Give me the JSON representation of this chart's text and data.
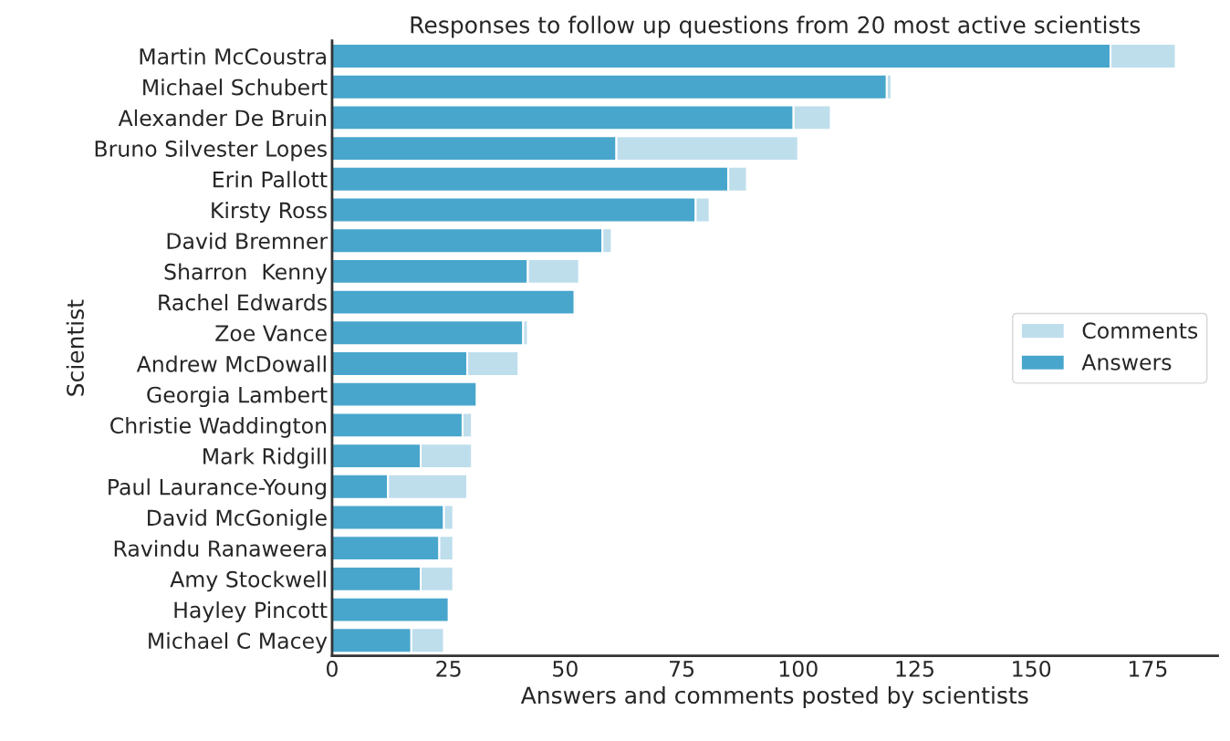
{
  "chart_data": {
    "type": "bar",
    "orientation": "horizontal",
    "stacked": true,
    "title": "Responses to follow up questions from 20 most active scientists",
    "xlabel": "Answers and comments posted by scientists",
    "ylabel": "Scientist",
    "categories": [
      "Martin McCoustra",
      "Michael Schubert",
      "Alexander De Bruin",
      "Bruno Silvester Lopes",
      "Erin Pallott",
      "Kirsty Ross",
      "David Bremner",
      "Sharron  Kenny",
      "Rachel Edwards",
      "Zoe Vance",
      "Andrew McDowall",
      "Georgia Lambert",
      "Christie Waddington",
      "Mark Ridgill",
      "Paul Laurance-Young",
      "David McGonigle",
      "Ravindu Ranaweera",
      "Amy Stockwell",
      "Hayley Pincott",
      "Michael C Macey"
    ],
    "series": [
      {
        "name": "Answers",
        "color": "#48a6cc",
        "values": [
          167,
          119,
          99,
          61,
          85,
          78,
          58,
          42,
          52,
          41,
          29,
          31,
          28,
          19,
          12,
          24,
          23,
          19,
          25,
          17
        ]
      },
      {
        "name": "Comments",
        "color": "#bedeec",
        "values": [
          14,
          1,
          8,
          39,
          4,
          3,
          2,
          11,
          0,
          1,
          11,
          0,
          2,
          11,
          17,
          2,
          3,
          7,
          0,
          7
        ]
      }
    ],
    "xlim": [
      0,
      190
    ],
    "xticks": [
      0,
      25,
      50,
      75,
      100,
      125,
      150,
      175
    ],
    "grid": false,
    "legend": "right"
  }
}
